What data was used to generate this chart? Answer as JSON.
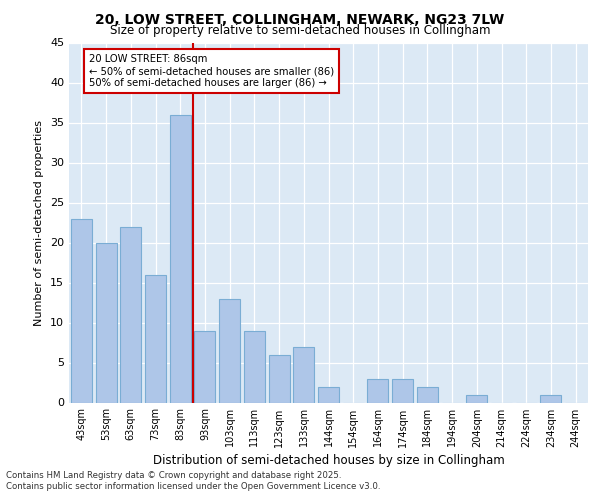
{
  "title1": "20, LOW STREET, COLLINGHAM, NEWARK, NG23 7LW",
  "title2": "Size of property relative to semi-detached houses in Collingham",
  "xlabel": "Distribution of semi-detached houses by size in Collingham",
  "ylabel": "Number of semi-detached properties",
  "categories": [
    "43sqm",
    "53sqm",
    "63sqm",
    "73sqm",
    "83sqm",
    "93sqm",
    "103sqm",
    "113sqm",
    "123sqm",
    "133sqm",
    "144sqm",
    "154sqm",
    "164sqm",
    "174sqm",
    "184sqm",
    "194sqm",
    "204sqm",
    "214sqm",
    "224sqm",
    "234sqm",
    "244sqm"
  ],
  "values": [
    23,
    20,
    22,
    16,
    36,
    9,
    13,
    9,
    6,
    7,
    2,
    0,
    3,
    3,
    2,
    0,
    1,
    0,
    0,
    1,
    0
  ],
  "bar_color": "#aec6e8",
  "bar_edge_color": "#7aadd4",
  "vline_x": 4.5,
  "vline_color": "#cc0000",
  "annotation_title": "20 LOW STREET: 86sqm",
  "annotation_line1": "← 50% of semi-detached houses are smaller (86)",
  "annotation_line2": "50% of semi-detached houses are larger (86) →",
  "annotation_box_color": "#cc0000",
  "ylim": [
    0,
    45
  ],
  "yticks": [
    0,
    5,
    10,
    15,
    20,
    25,
    30,
    35,
    40,
    45
  ],
  "bg_color": "#dce9f5",
  "footer1": "Contains HM Land Registry data © Crown copyright and database right 2025.",
  "footer2": "Contains public sector information licensed under the Open Government Licence v3.0."
}
